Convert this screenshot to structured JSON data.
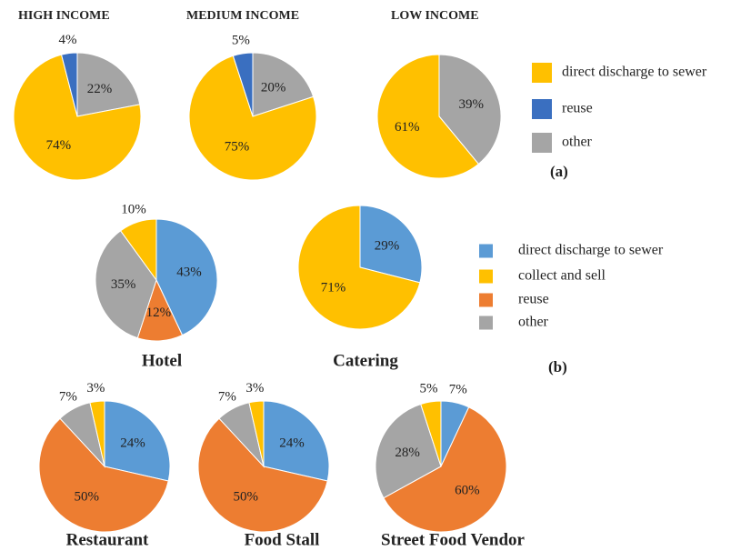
{
  "chart_data": [
    {
      "type": "pie",
      "label": "(a)",
      "categories": [
        "direct discharge to sewer",
        "reuse",
        "other"
      ],
      "colors": [
        "#FFC000",
        "#3A6FC0",
        "#A5A5A5"
      ],
      "pies": [
        {
          "title": "HIGH INCOME",
          "values": [
            74,
            4,
            22
          ],
          "value_labels": [
            "74%",
            "4%",
            "22%"
          ]
        },
        {
          "title": "MEDIUM INCOME",
          "values": [
            75,
            5,
            20
          ],
          "value_labels": [
            "75%",
            "5%",
            "20%"
          ]
        },
        {
          "title": "LOW INCOME",
          "values": [
            61,
            null,
            39
          ],
          "value_labels": [
            "61%",
            null,
            "39%"
          ]
        }
      ]
    },
    {
      "type": "pie",
      "label": "(b)",
      "categories": [
        "direct discharge to sewer",
        "collect and sell",
        "reuse",
        "other"
      ],
      "colors": [
        "#5B9BD5",
        "#FFC000",
        "#ED7D31",
        "#A5A5A5"
      ],
      "pies": [
        {
          "title": "Hotel",
          "values": [
            43,
            10,
            12,
            35
          ],
          "value_labels": [
            "43%",
            "10%",
            "12%",
            "35%"
          ]
        },
        {
          "title": "Catering",
          "values": [
            29,
            71,
            null,
            null
          ],
          "value_labels": [
            "29%",
            "71%",
            null,
            null
          ]
        },
        {
          "title": "Restaurant",
          "values": [
            24,
            3,
            50,
            7
          ],
          "value_labels": [
            "24%",
            "3%",
            "50%",
            "7%"
          ]
        },
        {
          "title": "Food Stall",
          "values": [
            24,
            3,
            50,
            7
          ],
          "value_labels": [
            "24%",
            "3%",
            "50%",
            "7%"
          ]
        },
        {
          "title": "Street Food Vendor",
          "values": [
            7,
            5,
            60,
            28
          ],
          "value_labels": [
            "7%",
            "5%",
            "60%",
            "28%"
          ]
        }
      ]
    }
  ]
}
